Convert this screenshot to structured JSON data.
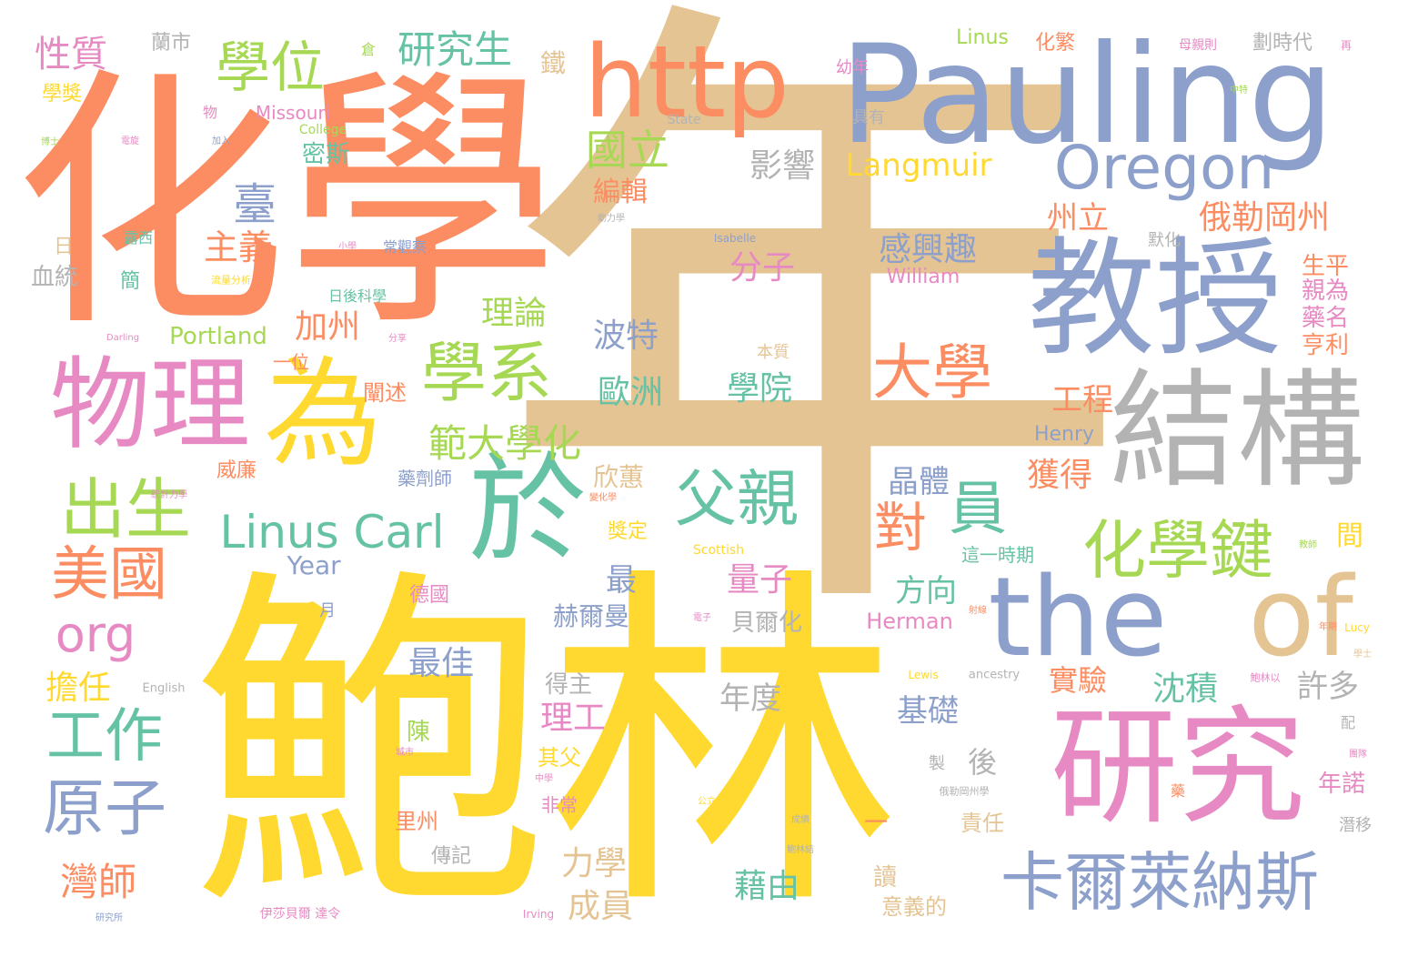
{
  "palette": {
    "orange": "#fc8d62",
    "blue": "#8da0cb",
    "yellow": "#ffd92f",
    "tan": "#e5c494",
    "pink": "#e78ac3",
    "green": "#66c2a5",
    "lime": "#a6d854",
    "gray": "#b3b3b3"
  },
  "words": [
    {
      "id": "w-nian",
      "text": "年",
      "color": "#e5c494",
      "weight": 1.0
    },
    {
      "id": "w-baolin",
      "text": "鮑林",
      "color": "#ffd92f",
      "weight": 0.95
    },
    {
      "id": "w-huaxue",
      "text": "化學",
      "color": "#fc8d62",
      "weight": 0.9
    },
    {
      "id": "w-pauling",
      "text": "Pauling",
      "color": "#8da0cb",
      "weight": 0.8
    },
    {
      "id": "w-jiaoshou",
      "text": "教授",
      "color": "#8da0cb",
      "weight": 0.62
    },
    {
      "id": "w-jiegou",
      "text": "結構",
      "color": "#b3b3b3",
      "weight": 0.55
    },
    {
      "id": "w-yanjiu",
      "text": "研究",
      "color": "#e78ac3",
      "weight": 0.55
    },
    {
      "id": "w-yu",
      "text": "於",
      "color": "#66c2a5",
      "weight": 0.55
    },
    {
      "id": "w-wei",
      "text": "為",
      "color": "#ffd92f",
      "weight": 0.52
    },
    {
      "id": "w-wuli",
      "text": "物理",
      "color": "#e78ac3",
      "weight": 0.48
    },
    {
      "id": "w-http",
      "text": "http",
      "color": "#fc8d62",
      "weight": 0.45
    },
    {
      "id": "w-the",
      "text": "the",
      "color": "#8da0cb",
      "weight": 0.44
    },
    {
      "id": "w-of",
      "text": "of",
      "color": "#e5c494",
      "weight": 0.42
    },
    {
      "id": "w-xuexi",
      "text": "學系",
      "color": "#a6d854",
      "weight": 0.38
    },
    {
      "id": "w-kaernai",
      "text": "卡爾萊納斯",
      "color": "#8da0cb",
      "weight": 0.35
    },
    {
      "id": "w-oregon",
      "text": "Oregon",
      "color": "#8da0cb",
      "weight": 0.32
    },
    {
      "id": "w-huaxuejian",
      "text": "化學鍵",
      "color": "#a6d854",
      "weight": 0.32
    },
    {
      "id": "w-xuewei",
      "text": "學位",
      "color": "#a6d854",
      "weight": 0.3
    },
    {
      "id": "w-chusheng",
      "text": "出生",
      "color": "#a6d854",
      "weight": 0.3
    },
    {
      "id": "w-fuqin",
      "text": "父親",
      "color": "#66c2a5",
      "weight": 0.3
    },
    {
      "id": "w-daxue",
      "text": "大學",
      "color": "#fc8d62",
      "weight": 0.3
    },
    {
      "id": "w-yuan",
      "text": "員",
      "color": "#66c2a5",
      "weight": 0.3
    },
    {
      "id": "w-meiguo",
      "text": "美國",
      "color": "#fc8d62",
      "weight": 0.28
    },
    {
      "id": "w-yuanzi",
      "text": "原子",
      "color": "#8da0cb",
      "weight": 0.28
    },
    {
      "id": "w-gongzuo",
      "text": "工作",
      "color": "#66c2a5",
      "weight": 0.28
    },
    {
      "id": "w-linuscarl",
      "text": "Linus Carl",
      "color": "#66c2a5",
      "weight": 0.27
    },
    {
      "id": "w-dui",
      "text": "對",
      "color": "#fc8d62",
      "weight": 0.26
    },
    {
      "id": "w-org",
      "text": "org",
      "color": "#e78ac3",
      "weight": 0.25
    },
    {
      "id": "w-guoli",
      "text": "國立",
      "color": "#a6d854",
      "weight": 0.22
    },
    {
      "id": "w-tai",
      "text": "臺",
      "color": "#8da0cb",
      "weight": 0.22
    },
    {
      "id": "w-fanda",
      "text": "範大學化",
      "color": "#a6d854",
      "weight": 0.2
    },
    {
      "id": "w-wanshi",
      "text": "灣師",
      "color": "#fc8d62",
      "weight": 0.2
    },
    {
      "id": "w-yanjiusheng",
      "text": "研究生",
      "color": "#66c2a5",
      "weight": 0.2
    },
    {
      "id": "w-xingzhi",
      "text": "性質",
      "color": "#e78ac3",
      "weight": 0.18
    },
    {
      "id": "w-langmuir",
      "text": "Langmuir",
      "color": "#ffd92f",
      "weight": 0.17
    },
    {
      "id": "w-elegang",
      "text": "俄勒岡州",
      "color": "#fc8d62",
      "weight": 0.17
    },
    {
      "id": "w-ganxingqu",
      "text": "感興趣",
      "color": "#8da0cb",
      "weight": 0.17
    },
    {
      "id": "w-yingxiang",
      "text": "影響",
      "color": "#b3b3b3",
      "weight": 0.17
    },
    {
      "id": "w-fenzi",
      "text": "分子",
      "color": "#e78ac3",
      "weight": 0.17
    },
    {
      "id": "w-zhuyi",
      "text": "主義",
      "color": "#fc8d62",
      "weight": 0.17
    },
    {
      "id": "w-jiazhou",
      "text": "加州",
      "color": "#fc8d62",
      "weight": 0.16
    },
    {
      "id": "w-lilun",
      "text": "理論",
      "color": "#a6d854",
      "weight": 0.16
    },
    {
      "id": "w-bote",
      "text": "波特",
      "color": "#8da0cb",
      "weight": 0.16
    },
    {
      "id": "w-ouzhou",
      "text": "歐洲",
      "color": "#66c2a5",
      "weight": 0.16
    },
    {
      "id": "w-xueyuan",
      "text": "學院",
      "color": "#66c2a5",
      "weight": 0.16
    },
    {
      "id": "w-bianji",
      "text": "編輯",
      "color": "#fc8d62",
      "weight": 0.15
    },
    {
      "id": "w-mishi",
      "text": "密斯",
      "color": "#66c2a5",
      "weight": 0.14
    },
    {
      "id": "w-zhouli",
      "text": "州立",
      "color": "#fc8d62",
      "weight": 0.15
    },
    {
      "id": "w-gongcheng",
      "text": "工程",
      "color": "#fc8d62",
      "weight": 0.15
    },
    {
      "id": "w-huode",
      "text": "獲得",
      "color": "#fc8d62",
      "weight": 0.15
    },
    {
      "id": "w-jingti",
      "text": "晶體",
      "color": "#8da0cb",
      "weight": 0.15
    },
    {
      "id": "w-liangzi",
      "text": "量子",
      "color": "#e78ac3",
      "weight": 0.15
    },
    {
      "id": "w-fangxiang",
      "text": "方向",
      "color": "#66c2a5",
      "weight": 0.15
    },
    {
      "id": "w-xinhui",
      "text": "欣蕙",
      "color": "#e5c494",
      "weight": 0.14
    },
    {
      "id": "w-zui",
      "text": "最",
      "color": "#8da0cb",
      "weight": 0.15
    },
    {
      "id": "w-zuijia",
      "text": "最佳",
      "color": "#8da0cb",
      "weight": 0.15
    },
    {
      "id": "w-niandu",
      "text": "年度",
      "color": "#b3b3b3",
      "weight": 0.15
    },
    {
      "id": "w-jichu",
      "text": "基礎",
      "color": "#8da0cb",
      "weight": 0.15
    },
    {
      "id": "w-shiyan",
      "text": "實驗",
      "color": "#fc8d62",
      "weight": 0.14
    },
    {
      "id": "w-chenji",
      "text": "沈積",
      "color": "#66c2a5",
      "weight": 0.15
    },
    {
      "id": "w-xuduo",
      "text": "許多",
      "color": "#b3b3b3",
      "weight": 0.15
    },
    {
      "id": "w-ligong",
      "text": "理工",
      "color": "#e78ac3",
      "weight": 0.15
    },
    {
      "id": "w-hou",
      "text": "後",
      "color": "#b3b3b3",
      "weight": 0.14
    },
    {
      "id": "w-lixue",
      "text": "力學",
      "color": "#e5c494",
      "weight": 0.15
    },
    {
      "id": "w-chengyuan",
      "text": "成員",
      "color": "#e5c494",
      "weight": 0.15
    },
    {
      "id": "w-jieyou",
      "text": "藉由",
      "color": "#66c2a5",
      "weight": 0.15
    },
    {
      "id": "w-danren",
      "text": "擔任",
      "color": "#ffd92f",
      "weight": 0.15
    },
    {
      "id": "w-helman",
      "text": "赫爾曼",
      "color": "#8da0cb",
      "weight": 0.12
    },
    {
      "id": "w-portland",
      "text": "Portland",
      "color": "#a6d854",
      "weight": 0.11
    },
    {
      "id": "w-year",
      "text": "Year",
      "color": "#8da0cb",
      "weight": 0.11
    },
    {
      "id": "w-missouri",
      "text": "Missouri",
      "color": "#e78ac3",
      "weight": 0.09
    },
    {
      "id": "w-linus",
      "text": "Linus",
      "color": "#a6d854",
      "weight": 0.09
    },
    {
      "id": "w-henry",
      "text": "Henry",
      "color": "#8da0cb",
      "weight": 0.09
    },
    {
      "id": "w-herman",
      "text": "Herman",
      "color": "#e78ac3",
      "weight": 0.09
    },
    {
      "id": "w-william",
      "text": "William",
      "color": "#e78ac3",
      "weight": 0.09
    },
    {
      "id": "w-xuetong",
      "text": "血統",
      "color": "#b3b3b3",
      "weight": 0.12
    },
    {
      "id": "w-weilian",
      "text": "威廉",
      "color": "#fc8d62",
      "weight": 0.1
    },
    {
      "id": "w-yiwei",
      "text": "一位",
      "color": "#fc8d62",
      "weight": 0.09
    },
    {
      "id": "w-chanshu",
      "text": "闡述",
      "color": "#fc8d62",
      "weight": 0.1
    },
    {
      "id": "w-deguo",
      "text": "德國",
      "color": "#e78ac3",
      "weight": 0.1
    },
    {
      "id": "w-yaojishi",
      "text": "藥劑師",
      "color": "#8da0cb",
      "weight": 0.09
    },
    {
      "id": "w-jiangding",
      "text": "獎定",
      "color": "#ffd92f",
      "weight": 0.1
    },
    {
      "id": "w-deizhu",
      "text": "得主",
      "color": "#b3b3b3",
      "weight": 0.11
    },
    {
      "id": "w-qifu",
      "text": "其父",
      "color": "#ffd92f",
      "weight": 0.1
    },
    {
      "id": "w-feichang",
      "text": "非常",
      "color": "#e78ac3",
      "weight": 0.09
    },
    {
      "id": "w-lizhou",
      "text": "里州",
      "color": "#fc8d62",
      "weight": 0.1
    },
    {
      "id": "w-chuanji",
      "text": "傳記",
      "color": "#b3b3b3",
      "weight": 0.1
    },
    {
      "id": "w-chen",
      "text": "陳",
      "color": "#a6d854",
      "weight": 0.1
    },
    {
      "id": "w-beierhua",
      "text": "貝爾化",
      "color": "#b3b3b3",
      "weight": 0.1
    },
    {
      "id": "w-zhe",
      "text": "這一時期",
      "color": "#66c2a5",
      "weight": 0.08
    },
    {
      "id": "w-jian",
      "text": "間",
      "color": "#ffd92f",
      "weight": 0.11
    },
    {
      "id": "w-shengping",
      "text": "生平",
      "color": "#fc8d62",
      "weight": 0.1
    },
    {
      "id": "w-qinwei",
      "text": "親為",
      "color": "#e78ac3",
      "weight": 0.1
    },
    {
      "id": "w-yaoming",
      "text": "藥名",
      "color": "#e78ac3",
      "weight": 0.1
    },
    {
      "id": "w-hengli",
      "text": "亨利",
      "color": "#fc8d62",
      "weight": 0.1
    },
    {
      "id": "w-nianuo",
      "text": "年諾",
      "color": "#e78ac3",
      "weight": 0.1
    },
    {
      "id": "w-zeren",
      "text": "責任",
      "color": "#e5c494",
      "weight": 0.09
    },
    {
      "id": "w-du",
      "text": "讀",
      "color": "#e5c494",
      "weight": 0.09
    },
    {
      "id": "w-yiyi",
      "text": "意義的",
      "color": "#e5c494",
      "weight": 0.09
    },
    {
      "id": "w-zhi",
      "text": "製",
      "color": "#b3b3b3",
      "weight": 0.08
    },
    {
      "id": "w-yue",
      "text": "月",
      "color": "#8da0cb",
      "weight": 0.08
    },
    {
      "id": "w-jian2",
      "text": "簡",
      "color": "#66c2a5",
      "weight": 0.09
    },
    {
      "id": "w-ri",
      "text": "日",
      "color": "#e5c494",
      "weight": 0.09
    },
    {
      "id": "w-lanshi",
      "text": "蘭市",
      "color": "#b3b3b3",
      "weight": 0.09
    },
    {
      "id": "w-xuejiang",
      "text": "學獎",
      "color": "#ffd92f",
      "weight": 0.09
    },
    {
      "id": "w-huafan",
      "text": "化繁",
      "color": "#fc8d62",
      "weight": 0.09
    },
    {
      "id": "w-huashidai",
      "text": "劃時代",
      "color": "#b3b3b3",
      "weight": 0.09
    },
    {
      "id": "w-tie",
      "text": "鐵",
      "color": "#e5c494",
      "weight": 0.1
    },
    {
      "id": "w-youain",
      "text": "幼年",
      "color": "#e78ac3",
      "weight": 0.08
    },
    {
      "id": "w-juyou",
      "text": "具有",
      "color": "#b3b3b3",
      "weight": 0.08
    },
    {
      "id": "w-benzhi",
      "text": "本質",
      "color": "#e5c494",
      "weight": 0.08
    },
    {
      "id": "w-mohua",
      "text": "默化",
      "color": "#b3b3b3",
      "weight": 0.08
    },
    {
      "id": "w-lu",
      "text": "露西",
      "color": "#66c2a5",
      "weight": 0.07
    },
    {
      "id": "w-richou",
      "text": "日後科學",
      "color": "#66c2a5",
      "weight": 0.06
    },
    {
      "id": "w-changguan",
      "text": "常觀察",
      "color": "#8da0cb",
      "weight": 0.06
    },
    {
      "id": "w-college",
      "text": "College",
      "color": "#a6d854",
      "weight": 0.05
    },
    {
      "id": "w-state",
      "text": "State",
      "color": "#b3b3b3",
      "weight": 0.05
    },
    {
      "id": "w-isabelle",
      "text": "Isabelle",
      "color": "#8da0cb",
      "weight": 0.04
    },
    {
      "id": "w-scottish",
      "text": "Scottish",
      "color": "#ffd92f",
      "weight": 0.05
    },
    {
      "id": "w-english",
      "text": "English",
      "color": "#b3b3b3",
      "weight": 0.04
    },
    {
      "id": "w-lewis",
      "text": "Lewis",
      "color": "#ffd92f",
      "weight": 0.04
    },
    {
      "id": "w-ancestry",
      "text": "ancestry",
      "color": "#b3b3b3",
      "weight": 0.04
    },
    {
      "id": "w-irving",
      "text": "Irving",
      "color": "#e78ac3",
      "weight": 0.04
    },
    {
      "id": "w-darling",
      "text": "Darling",
      "color": "#e78ac3",
      "weight": 0.03
    },
    {
      "id": "w-lucy",
      "text": "Lucy",
      "color": "#ffd92f",
      "weight": 0.04
    },
    {
      "id": "w-yisha",
      "text": "伊莎貝爾 達令",
      "color": "#e78ac3",
      "weight": 0.04
    },
    {
      "id": "w-yanjiusuo",
      "text": "研究所",
      "color": "#8da0cb",
      "weight": 0.03
    },
    {
      "id": "w-cang",
      "text": "倉",
      "color": "#a6d854",
      "weight": 0.06
    },
    {
      "id": "w-wu",
      "text": "物",
      "color": "#e78ac3",
      "weight": 0.06
    },
    {
      "id": "w-zhai",
      "text": "再",
      "color": "#e78ac3",
      "weight": 0.04
    },
    {
      "id": "w-muqinze",
      "text": "母親則",
      "color": "#e78ac3",
      "weight": 0.05
    },
    {
      "id": "w-fenxiang",
      "text": "分享",
      "color": "#e78ac3",
      "weight": 0.03
    },
    {
      "id": "w-liliang",
      "text": "流量分析",
      "color": "#ffd92f",
      "weight": 0.03
    },
    {
      "id": "w-tongji",
      "text": "統計力學",
      "color": "#e78ac3",
      "weight": 0.03
    },
    {
      "id": "w-gongli",
      "text": "公立",
      "color": "#ffd92f",
      "weight": 0.03
    },
    {
      "id": "w-elegang2",
      "text": "俄勒岡州學",
      "color": "#b3b3b3",
      "weight": 0.03
    },
    {
      "id": "w-baolinyi",
      "text": "鮑林以",
      "color": "#e78ac3",
      "weight": 0.03
    },
    {
      "id": "w-dianzi",
      "text": "電子",
      "color": "#e78ac3",
      "weight": 0.03
    },
    {
      "id": "w-zhongte",
      "text": "中特",
      "color": "#a6d854",
      "weight": 0.03
    },
    {
      "id": "w-jiaoshi",
      "text": "教師",
      "color": "#a6d854",
      "weight": 0.03
    },
    {
      "id": "w-tuandui",
      "text": "團隊",
      "color": "#e78ac3",
      "weight": 0.03
    },
    {
      "id": "w-qianyi",
      "text": "潛移",
      "color": "#b3b3b3",
      "weight": 0.05
    },
    {
      "id": "w-pei",
      "text": "配",
      "color": "#b3b3b3",
      "weight": 0.05
    },
    {
      "id": "w-yao",
      "text": "藥",
      "color": "#fc8d62",
      "weight": 0.05
    },
    {
      "id": "w-xueshi",
      "text": "學士",
      "color": "#e5c494",
      "weight": 0.03
    },
    {
      "id": "w-jiaru",
      "text": "加入",
      "color": "#8da0cb",
      "weight": 0.03
    },
    {
      "id": "w-boshi",
      "text": "博士",
      "color": "#a6d854",
      "weight": 0.03
    },
    {
      "id": "w-dianxuan",
      "text": "電旋",
      "color": "#e78ac3",
      "weight": 0.03
    },
    {
      "id": "w-zhongxue",
      "text": "中學",
      "color": "#e78ac3",
      "weight": 0.03
    },
    {
      "id": "w-chengshi",
      "text": "城市",
      "color": "#e78ac3",
      "weight": 0.03
    },
    {
      "id": "w-chengji",
      "text": "成績",
      "color": "#b3b3b3",
      "weight": 0.03
    },
    {
      "id": "w-baolinjie",
      "text": "鮑林結",
      "color": "#b3b3b3",
      "weight": 0.03
    },
    {
      "id": "w-dongli",
      "text": "動力學",
      "color": "#b3b3b3",
      "weight": 0.03
    },
    {
      "id": "w-nianqi",
      "text": "年期",
      "color": "#fc8d62",
      "weight": 0.03
    },
    {
      "id": "w-bianhua",
      "text": "變化學",
      "color": "#fc8d62",
      "weight": 0.03
    },
    {
      "id": "w-xiaoxue",
      "text": "小學",
      "color": "#e78ac3",
      "weight": 0.03
    },
    {
      "id": "w-sheshe",
      "text": "射線",
      "color": "#fc8d62",
      "weight": 0.03
    },
    {
      "id": "w-dash",
      "text": "一",
      "color": "#fc8d62",
      "weight": 0.05
    }
  ]
}
